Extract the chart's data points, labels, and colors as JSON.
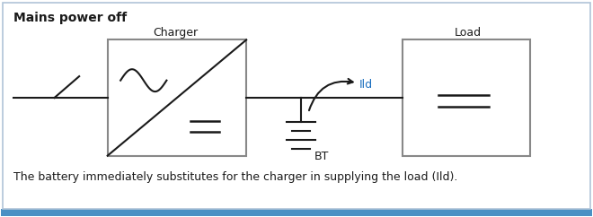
{
  "title": "Mains power off",
  "subtitle": "The battery immediately substitutes for the charger in supplying the load (Ild).",
  "charger_label": "Charger",
  "load_label": "Load",
  "bt_label": "BT",
  "ild_label": "Ild",
  "box_color": "#888888",
  "line_color": "#1a1a1a",
  "text_color": "#1a1a1a",
  "ild_color": "#1a6ebf",
  "border_color": "#4a90c4"
}
